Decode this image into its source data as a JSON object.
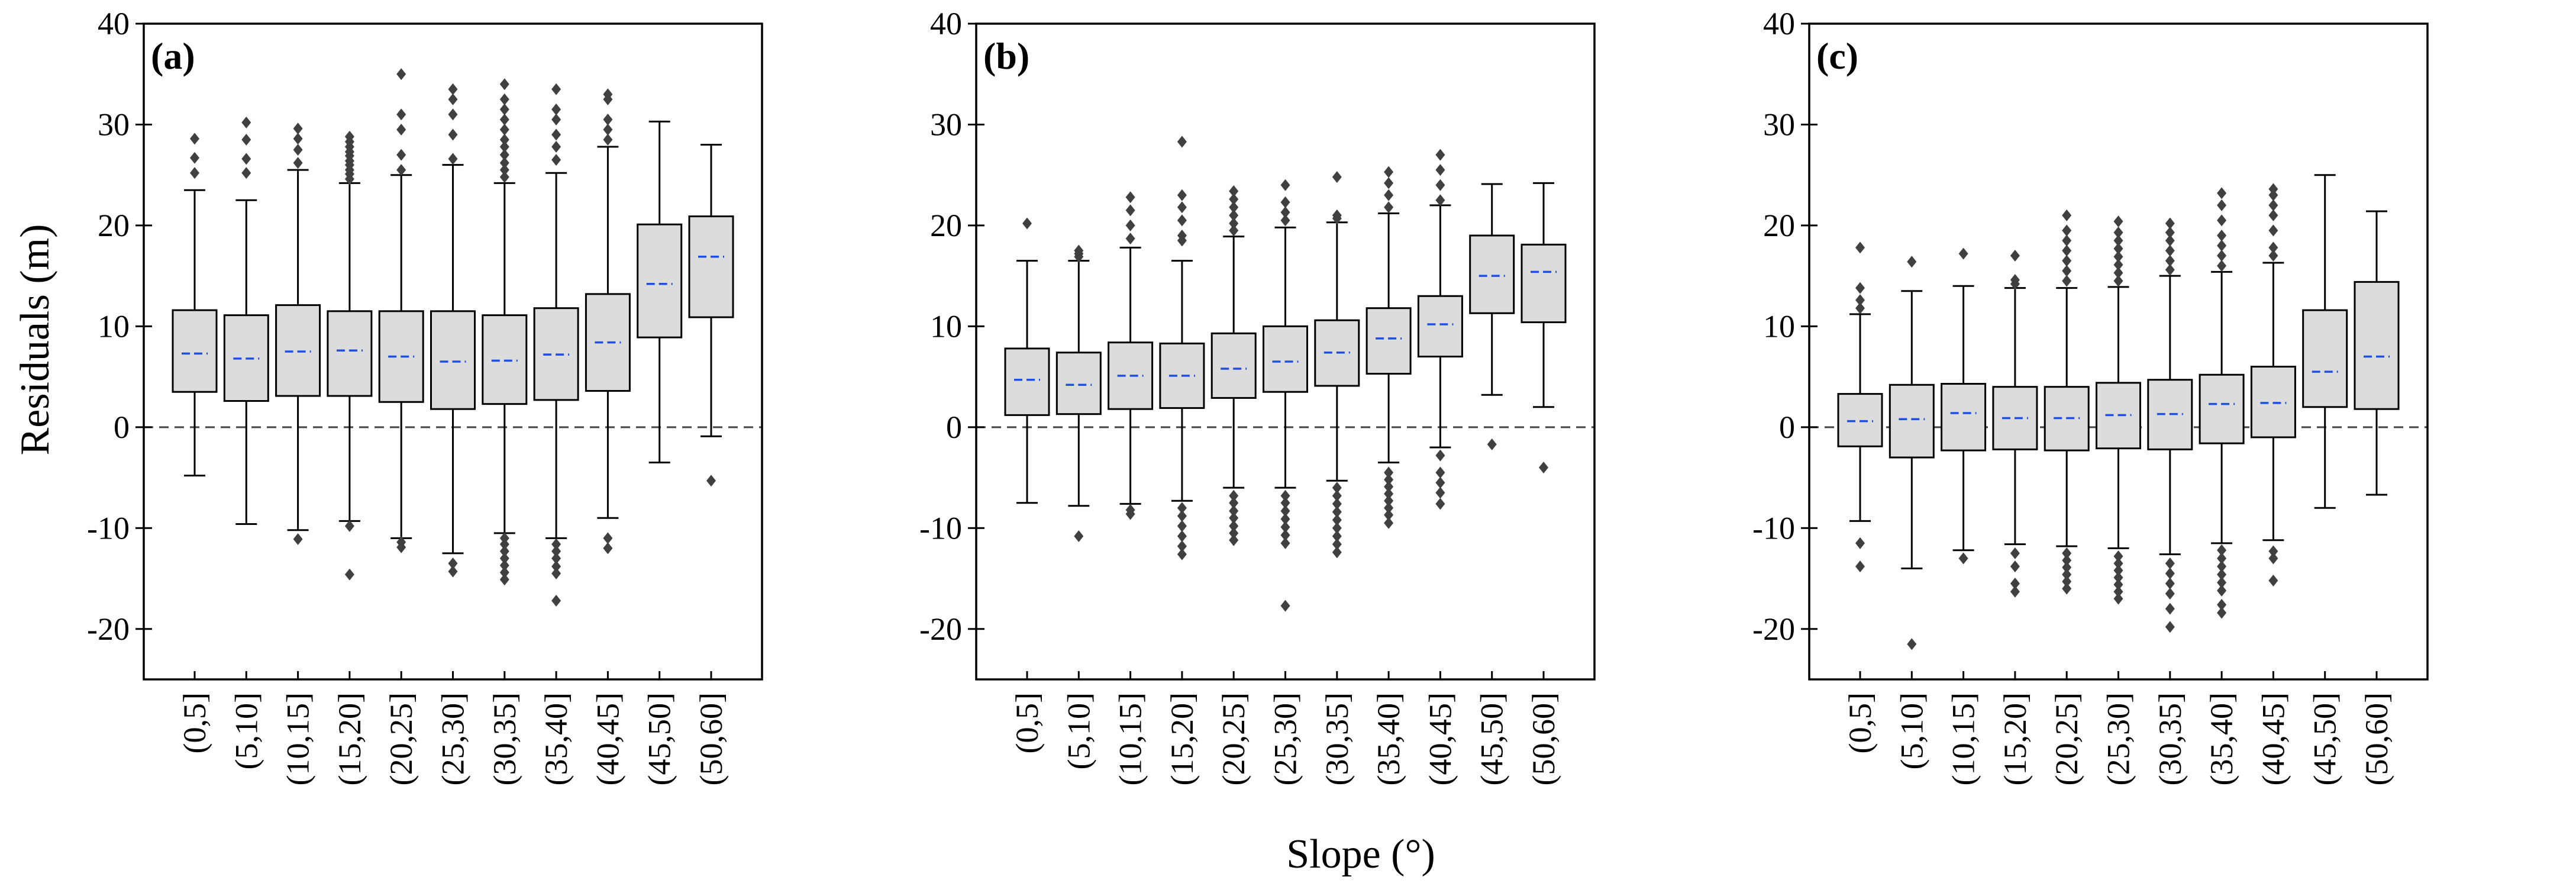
{
  "chart_data": {
    "type": "box",
    "ylabel": "Residuals (m)",
    "xlabel": "Slope (°)",
    "ylim": [
      -25,
      40
    ],
    "yticks": [
      -20,
      -10,
      0,
      10,
      20,
      30,
      40
    ],
    "reference_line": 0,
    "categories": [
      "(0,5]",
      "(5,10]",
      "(10,15]",
      "(15,20]",
      "(20,25]",
      "(25,30]",
      "(30,35]",
      "(35,40]",
      "(40,45]",
      "(45,50]",
      "(50,60]"
    ],
    "colors": {
      "box_fill": "#dcdcdc",
      "mean_line": "#1f4fe0",
      "outlier": "#404040",
      "reference_line": "#444444"
    },
    "panels": [
      {
        "label": "(a)",
        "boxes": [
          {
            "whislo": -4.8,
            "q1": 3.5,
            "q3": 11.6,
            "whishi": 23.5,
            "mean": 7.3,
            "fliers": [
              25.2,
              26.7,
              28.6
            ]
          },
          {
            "whislo": -9.6,
            "q1": 2.6,
            "q3": 11.1,
            "whishi": 22.5,
            "mean": 6.8,
            "fliers": [
              25.2,
              26.6,
              28.5,
              30.2
            ]
          },
          {
            "whislo": -10.2,
            "q1": 3.1,
            "q3": 12.1,
            "whishi": 25.5,
            "mean": 7.5,
            "fliers": [
              -11.1,
              26.2,
              27.5,
              28.6,
              29.6
            ]
          },
          {
            "whislo": -9.3,
            "q1": 3.1,
            "q3": 11.5,
            "whishi": 24.2,
            "mean": 7.6,
            "fliers": [
              -9.8,
              -14.6,
              24.6,
              25.1,
              25.5,
              26.0,
              26.4,
              26.9,
              27.3,
              27.8,
              28.3,
              28.8
            ]
          },
          {
            "whislo": -11.0,
            "q1": 2.5,
            "q3": 11.5,
            "whishi": 25.0,
            "mean": 7.0,
            "fliers": [
              -11.4,
              -11.9,
              25.5,
              27.0,
              29.5,
              31.0,
              35.0
            ]
          },
          {
            "whislo": -12.5,
            "q1": 1.8,
            "q3": 11.5,
            "whishi": 26.0,
            "mean": 6.5,
            "fliers": [
              -13.5,
              -14.3,
              26.6,
              29.0,
              31.0,
              32.5,
              33.5
            ]
          },
          {
            "whislo": -10.5,
            "q1": 2.3,
            "q3": 11.1,
            "whishi": 24.2,
            "mean": 6.6,
            "fliers": [
              -11.0,
              -11.6,
              -12.3,
              -13.0,
              -13.7,
              -14.4,
              -15.1,
              24.8,
              25.5,
              26.2,
              27.0,
              27.8,
              28.5,
              29.5,
              30.5,
              31.5,
              32.5,
              34.0
            ]
          },
          {
            "whislo": -11.0,
            "q1": 2.7,
            "q3": 11.8,
            "whishi": 25.2,
            "mean": 7.2,
            "fliers": [
              -11.6,
              -12.3,
              -13.0,
              -13.8,
              -14.5,
              -17.2,
              26.5,
              27.8,
              29.0,
              30.5,
              31.5,
              33.5
            ]
          },
          {
            "whislo": -9.0,
            "q1": 3.6,
            "q3": 13.2,
            "whishi": 27.8,
            "mean": 8.4,
            "fliers": [
              -11.0,
              -12.0,
              28.5,
              29.5,
              30.5,
              32.5,
              33.0
            ]
          },
          {
            "whislo": -3.5,
            "q1": 8.9,
            "q3": 20.1,
            "whishi": 30.3,
            "mean": 14.2,
            "fliers": []
          },
          {
            "whislo": -0.9,
            "q1": 10.9,
            "q3": 20.9,
            "whishi": 28.0,
            "mean": 16.9,
            "fliers": [
              -5.3
            ]
          }
        ]
      },
      {
        "label": "(b)",
        "boxes": [
          {
            "whislo": -7.5,
            "q1": 1.2,
            "q3": 7.8,
            "whishi": 16.5,
            "mean": 4.7,
            "fliers": [
              20.2
            ]
          },
          {
            "whislo": -7.8,
            "q1": 1.3,
            "q3": 7.4,
            "whishi": 16.5,
            "mean": 4.2,
            "fliers": [
              -10.8,
              16.9,
              17.2,
              17.5
            ]
          },
          {
            "whislo": -7.6,
            "q1": 1.8,
            "q3": 8.4,
            "whishi": 17.8,
            "mean": 5.1,
            "fliers": [
              -8.2,
              -8.6,
              18.7,
              20.0,
              21.5,
              22.8
            ]
          },
          {
            "whislo": -7.3,
            "q1": 1.9,
            "q3": 8.3,
            "whishi": 16.5,
            "mean": 5.1,
            "fliers": [
              -8.0,
              -8.8,
              -9.8,
              -10.8,
              -11.8,
              -12.6,
              18.5,
              19.0,
              20.5,
              21.8,
              23.0,
              28.3
            ]
          },
          {
            "whislo": -6.0,
            "q1": 2.9,
            "q3": 9.3,
            "whishi": 18.9,
            "mean": 5.8,
            "fliers": [
              -6.8,
              -7.5,
              -8.3,
              -9.0,
              -9.8,
              -10.5,
              -11.2,
              19.5,
              20.2,
              21.0,
              21.8,
              22.6,
              23.4
            ]
          },
          {
            "whislo": -6.0,
            "q1": 3.5,
            "q3": 10.0,
            "whishi": 19.8,
            "mean": 6.5,
            "fliers": [
              -6.8,
              -7.5,
              -8.3,
              -9.1,
              -9.9,
              -10.7,
              -11.5,
              -17.7,
              20.5,
              21.3,
              22.3,
              24.0
            ]
          },
          {
            "whislo": -5.3,
            "q1": 4.1,
            "q3": 10.6,
            "whishi": 20.3,
            "mean": 7.4,
            "fliers": [
              -6.0,
              -6.8,
              -7.6,
              -8.4,
              -9.2,
              -10.0,
              -10.8,
              -11.6,
              -12.4,
              20.7,
              21.0,
              24.8
            ]
          },
          {
            "whislo": -3.5,
            "q1": 5.3,
            "q3": 11.8,
            "whishi": 21.2,
            "mean": 8.8,
            "fliers": [
              -4.5,
              -5.2,
              -5.9,
              -6.6,
              -7.3,
              -8.0,
              -8.7,
              -9.5,
              21.8,
              23.0,
              24.2,
              25.3
            ]
          },
          {
            "whislo": -2.0,
            "q1": 7.0,
            "q3": 13.0,
            "whishi": 22.0,
            "mean": 10.2,
            "fliers": [
              -2.8,
              -4.5,
              -5.5,
              -6.5,
              -7.6,
              22.5,
              24.0,
              25.5,
              27.0
            ]
          },
          {
            "whislo": 3.2,
            "q1": 11.3,
            "q3": 19.0,
            "whishi": 24.1,
            "mean": 15.0,
            "fliers": [
              -1.7
            ]
          },
          {
            "whislo": 2.0,
            "q1": 10.4,
            "q3": 18.1,
            "whishi": 24.2,
            "mean": 15.4,
            "fliers": [
              -4.0
            ]
          }
        ]
      },
      {
        "label": "(c)",
        "boxes": [
          {
            "whislo": -9.3,
            "q1": -1.9,
            "q3": 3.3,
            "whishi": 11.2,
            "mean": 0.6,
            "fliers": [
              -11.5,
              -13.8,
              11.8,
              12.6,
              13.8,
              17.8
            ]
          },
          {
            "whislo": -14.0,
            "q1": -3.0,
            "q3": 4.2,
            "whishi": 13.5,
            "mean": 0.8,
            "fliers": [
              -21.5,
              16.4
            ]
          },
          {
            "whislo": -12.2,
            "q1": -2.3,
            "q3": 4.3,
            "whishi": 14.0,
            "mean": 1.4,
            "fliers": [
              -13.0,
              17.2
            ]
          },
          {
            "whislo": -11.6,
            "q1": -2.2,
            "q3": 4.0,
            "whishi": 13.8,
            "mean": 0.9,
            "fliers": [
              -12.5,
              -13.8,
              -15.5,
              -16.3,
              14.2,
              14.6,
              17.0
            ]
          },
          {
            "whislo": -11.8,
            "q1": -2.3,
            "q3": 4.0,
            "whishi": 13.8,
            "mean": 0.9,
            "fliers": [
              -12.5,
              -13.2,
              -13.9,
              -14.6,
              -15.3,
              -16.0,
              14.5,
              15.5,
              16.5,
              17.5,
              18.5,
              19.5,
              21.0
            ]
          },
          {
            "whislo": -12.0,
            "q1": -2.1,
            "q3": 4.4,
            "whishi": 13.9,
            "mean": 1.2,
            "fliers": [
              -12.8,
              -13.5,
              -14.2,
              -14.9,
              -15.6,
              -16.3,
              -17.0,
              14.5,
              15.3,
              16.1,
              16.9,
              17.7,
              18.5,
              19.3,
              20.4
            ]
          },
          {
            "whislo": -12.6,
            "q1": -2.2,
            "q3": 4.7,
            "whishi": 15.0,
            "mean": 1.3,
            "fliers": [
              -13.5,
              -14.5,
              -15.5,
              -16.5,
              -18.0,
              -19.8,
              15.6,
              16.5,
              17.5,
              18.5,
              19.3,
              20.2
            ]
          },
          {
            "whislo": -11.5,
            "q1": -1.6,
            "q3": 5.2,
            "whishi": 15.4,
            "mean": 2.3,
            "fliers": [
              -12.2,
              -13.0,
              -13.8,
              -14.6,
              -15.4,
              -16.2,
              -17.6,
              -18.4,
              16.0,
              17.0,
              18.0,
              19.0,
              20.5,
              22.0,
              23.2
            ]
          },
          {
            "whislo": -11.2,
            "q1": -1.0,
            "q3": 6.0,
            "whishi": 16.3,
            "mean": 2.4,
            "fliers": [
              -12.3,
              -13.0,
              -15.2,
              17.0,
              17.8,
              19.5,
              21.0,
              22.0,
              23.0,
              23.6
            ]
          },
          {
            "whislo": -8.0,
            "q1": 2.0,
            "q3": 11.6,
            "whishi": 25.0,
            "mean": 5.5,
            "fliers": []
          },
          {
            "whislo": -6.7,
            "q1": 1.8,
            "q3": 14.4,
            "whishi": 21.4,
            "mean": 7.0,
            "fliers": []
          }
        ]
      }
    ]
  }
}
